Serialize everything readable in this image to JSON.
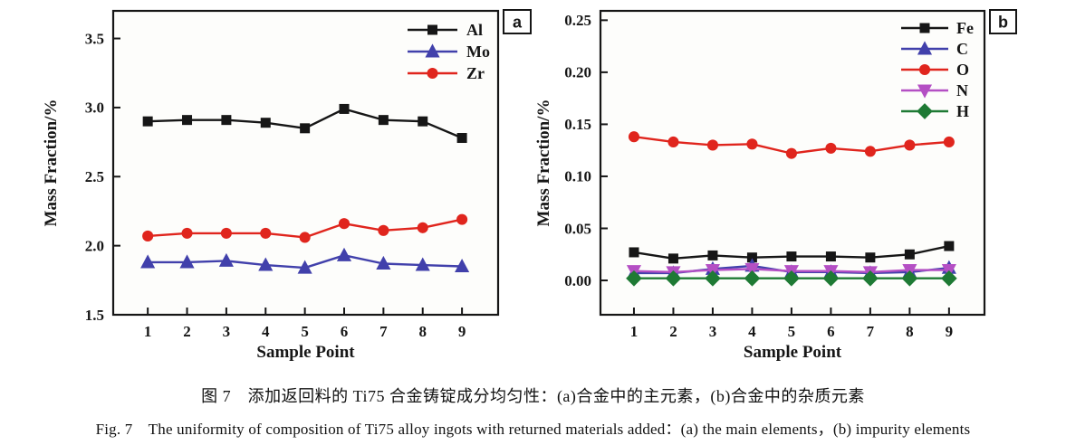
{
  "figure": {
    "caption_zh": "图 7　添加返回料的 Ti75 合金铸锭成分均匀性：(a)合金中的主元素，(b)合金中的杂质元素",
    "caption_en": "Fig. 7　The uniformity of composition of Ti75 alloy ingots with returned materials added：(a) the main elements，(b) impurity elements"
  },
  "chart_data": [
    {
      "id": "chart-a",
      "type": "line",
      "panel_label": "a",
      "title": "",
      "xlabel": "Sample Point",
      "ylabel": "Mass Fraction/%",
      "x": [
        1,
        2,
        3,
        4,
        5,
        6,
        7,
        8,
        9
      ],
      "xtick_labels": [
        "1",
        "2",
        "3",
        "4",
        "5",
        "6",
        "7",
        "8",
        "9"
      ],
      "ylim": [
        1.5,
        3.7
      ],
      "yticks": [
        1.5,
        2.0,
        2.5,
        3.0,
        3.5
      ],
      "ytick_labels": [
        "1.5",
        "2.0",
        "2.5",
        "3.0",
        "3.5"
      ],
      "grid": false,
      "legend_position": "upper right inside",
      "series": [
        {
          "name": "Al",
          "marker": "square",
          "color": "#161616",
          "values": [
            2.9,
            2.91,
            2.91,
            2.89,
            2.85,
            2.99,
            2.91,
            2.9,
            2.78
          ]
        },
        {
          "name": "Mo",
          "marker": "triangle-up",
          "color": "#4140ab",
          "values": [
            1.88,
            1.88,
            1.89,
            1.86,
            1.84,
            1.93,
            1.87,
            1.86,
            1.85
          ]
        },
        {
          "name": "Zr",
          "marker": "circle",
          "color": "#e0251d",
          "values": [
            2.07,
            2.09,
            2.09,
            2.09,
            2.06,
            2.16,
            2.11,
            2.13,
            2.19
          ]
        }
      ]
    },
    {
      "id": "chart-b",
      "type": "line",
      "panel_label": "b",
      "title": "",
      "xlabel": "Sample Point",
      "ylabel": "Mass Fraction/%",
      "x": [
        1,
        2,
        3,
        4,
        5,
        6,
        7,
        8,
        9
      ],
      "xtick_labels": [
        "1",
        "2",
        "3",
        "4",
        "5",
        "6",
        "7",
        "8",
        "9"
      ],
      "ylim": [
        -0.033,
        0.259
      ],
      "yticks": [
        0.0,
        0.05,
        0.1,
        0.15,
        0.2,
        0.25
      ],
      "ytick_labels": [
        "0.00",
        "0.05",
        "0.10",
        "0.15",
        "0.20",
        "0.25"
      ],
      "grid": false,
      "legend_position": "upper right inside",
      "series": [
        {
          "name": "Fe",
          "marker": "square",
          "color": "#161616",
          "values": [
            0.027,
            0.021,
            0.024,
            0.022,
            0.023,
            0.023,
            0.022,
            0.025,
            0.033
          ]
        },
        {
          "name": "C",
          "marker": "triangle-up",
          "color": "#4140ab",
          "values": [
            0.007,
            0.007,
            0.011,
            0.014,
            0.008,
            0.008,
            0.007,
            0.008,
            0.012
          ]
        },
        {
          "name": "O",
          "marker": "circle",
          "color": "#e0251d",
          "values": [
            0.138,
            0.133,
            0.13,
            0.131,
            0.122,
            0.127,
            0.124,
            0.13,
            0.133
          ]
        },
        {
          "name": "N",
          "marker": "triangle-down",
          "color": "#b44fc4",
          "values": [
            0.009,
            0.008,
            0.01,
            0.011,
            0.009,
            0.009,
            0.008,
            0.01,
            0.01
          ]
        },
        {
          "name": "H",
          "marker": "diamond",
          "color": "#1e7a34",
          "values": [
            0.002,
            0.002,
            0.002,
            0.002,
            0.002,
            0.002,
            0.002,
            0.002,
            0.002
          ]
        }
      ]
    }
  ]
}
